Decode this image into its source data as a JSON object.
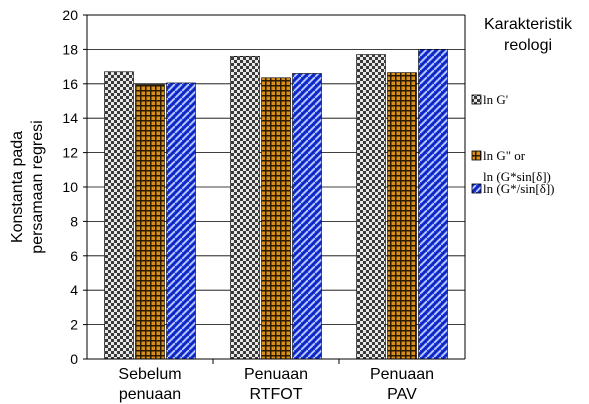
{
  "chart_data": {
    "type": "bar",
    "ylabel_lines": [
      "Konstanta pada",
      "persamaan regresi"
    ],
    "ylim": [
      0,
      20
    ],
    "yticks": [
      "0",
      "2",
      "4",
      "6",
      "8",
      "10",
      "12",
      "14",
      "16",
      "18",
      "20"
    ],
    "grid": true,
    "categories": [
      [
        "Sebelum",
        "penuaan"
      ],
      [
        "Penuaan",
        "RTFOT"
      ],
      [
        "Penuaan",
        "PAV"
      ]
    ],
    "legend_title_lines": [
      "Karakteristik",
      "reologi"
    ],
    "legend_placement": "right",
    "series": [
      {
        "name_lines": [
          "ln G'"
        ],
        "values": [
          16.7,
          17.6,
          17.7
        ],
        "color": "#9a9a9a",
        "pattern": "checker"
      },
      {
        "name_lines": [
          "ln G\" or",
          "ln (G*sin[δ])"
        ],
        "values": [
          15.95,
          16.35,
          16.65
        ],
        "color": "#c77d0a",
        "pattern": "grid"
      },
      {
        "name_lines": [
          "ln (G*/sin[δ])"
        ],
        "values": [
          16.05,
          16.6,
          18.0
        ],
        "color": "#1a3ce8",
        "pattern": "weave"
      }
    ]
  }
}
